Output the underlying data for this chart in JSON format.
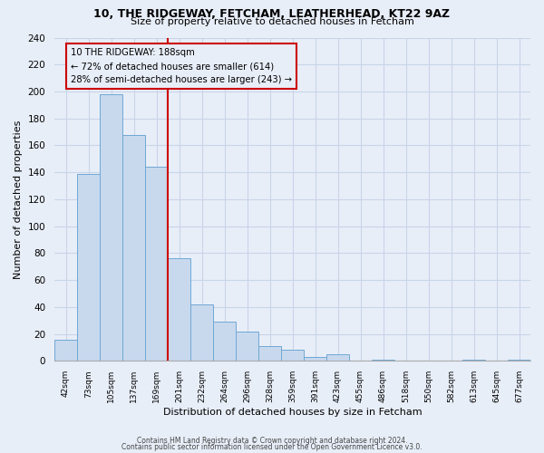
{
  "title1": "10, THE RIDGEWAY, FETCHAM, LEATHERHEAD, KT22 9AZ",
  "title2": "Size of property relative to detached houses in Fetcham",
  "xlabel": "Distribution of detached houses by size in Fetcham",
  "ylabel": "Number of detached properties",
  "bar_labels": [
    "42sqm",
    "73sqm",
    "105sqm",
    "137sqm",
    "169sqm",
    "201sqm",
    "232sqm",
    "264sqm",
    "296sqm",
    "328sqm",
    "359sqm",
    "391sqm",
    "423sqm",
    "455sqm",
    "486sqm",
    "518sqm",
    "550sqm",
    "582sqm",
    "613sqm",
    "645sqm",
    "677sqm"
  ],
  "bar_values": [
    16,
    139,
    198,
    168,
    144,
    76,
    42,
    29,
    22,
    11,
    8,
    3,
    5,
    0,
    1,
    0,
    0,
    0,
    1,
    0,
    1
  ],
  "bar_color": "#c8d9ee",
  "bar_edge_color": "#6fa8d4",
  "ref_line_index": 4.5,
  "annotation_title": "10 THE RIDGEWAY: 188sqm",
  "annotation_line1": "← 72% of detached houses are smaller (614)",
  "annotation_line2": "28% of semi-detached houses are larger (243) →",
  "annotation_color": "#cc0000",
  "ylim": [
    0,
    240
  ],
  "yticks": [
    0,
    20,
    40,
    60,
    80,
    100,
    120,
    140,
    160,
    180,
    200,
    220,
    240
  ],
  "footer1": "Contains HM Land Registry data © Crown copyright and database right 2024.",
  "footer2": "Contains public sector information licensed under the Open Government Licence v3.0.",
  "bg_color": "#e8eef8",
  "grid_color": "#c8d4e8"
}
